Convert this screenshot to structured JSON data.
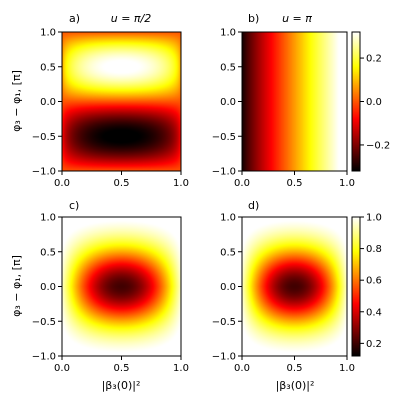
{
  "figure": {
    "ylabel": "φ₃ − φ₁, [π]",
    "xlabel": "|β₃(0)|²"
  },
  "chart_data": [
    {
      "panel": "a)",
      "title": "u = π/2",
      "type": "heatmap",
      "colormap": "hot",
      "xlim": [
        0.0,
        1.0
      ],
      "ylim": [
        -1.0,
        1.0
      ],
      "xticks": [
        "0.0",
        "0.5",
        "1.0"
      ],
      "yticks": [
        "−1.0",
        "−0.5",
        "0.0",
        "0.5",
        "1.0"
      ],
      "ylabel": "φ₃ − φ₁, [π]",
      "xlabel": "",
      "description_values": {
        "max_location": {
          "x": 0.5,
          "y": 0.5
        },
        "min_location": {
          "x": 0.5,
          "y": -0.5
        }
      }
    },
    {
      "panel": "b)",
      "title": "u = π",
      "type": "heatmap",
      "colormap": "hot",
      "xlim": [
        0.0,
        1.0
      ],
      "ylim": [
        -1.0,
        1.0
      ],
      "xticks": [
        "0.0",
        "0.5",
        "1.0"
      ],
      "yticks": [
        "−1.0",
        "−0.5",
        "0.0",
        "0.5",
        "1.0"
      ],
      "ylabel": "",
      "xlabel": "",
      "colorbar": {
        "range": [
          -0.32,
          0.32
        ],
        "ticks": [
          "0.2",
          "0.0",
          "−0.2"
        ],
        "tick_values": [
          0.2,
          0.0,
          -0.2
        ]
      }
    },
    {
      "panel": "c)",
      "title": "",
      "type": "heatmap",
      "colormap": "hot",
      "xlim": [
        0.0,
        1.0
      ],
      "ylim": [
        -1.0,
        1.0
      ],
      "xticks": [
        "0.0",
        "0.5",
        "1.0"
      ],
      "yticks": [
        "−1.0",
        "−0.5",
        "0.0",
        "0.5",
        "1.0"
      ],
      "ylabel": "φ₃ − φ₁, [π]",
      "xlabel": "|β₃(0)|²"
    },
    {
      "panel": "d)",
      "title": "",
      "type": "heatmap",
      "colormap": "hot",
      "xlim": [
        0.0,
        1.0
      ],
      "ylim": [
        -1.0,
        1.0
      ],
      "xticks": [
        "0.0",
        "0.5",
        "1.0"
      ],
      "yticks": [
        "−1.0",
        "−0.5",
        "0.0",
        "0.5",
        "1.0"
      ],
      "ylabel": "",
      "xlabel": "|β₃(0)|²",
      "colorbar": {
        "range": [
          0.12,
          1.0
        ],
        "ticks": [
          "1.0",
          "0.8",
          "0.6",
          "0.4",
          "0.2"
        ],
        "tick_values": [
          1.0,
          0.8,
          0.6,
          0.4,
          0.2
        ]
      }
    }
  ]
}
